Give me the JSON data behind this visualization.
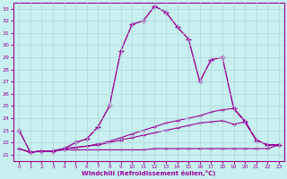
{
  "xlabel": "Windchill (Refroidissement éolien,°C)",
  "bg_color": "#c8f0f0",
  "grid_color": "#b0d8d8",
  "line_color": "#990099",
  "x_ticks": [
    0,
    1,
    2,
    3,
    4,
    5,
    6,
    7,
    8,
    9,
    10,
    11,
    12,
    13,
    14,
    15,
    16,
    17,
    18,
    19,
    20,
    21,
    22,
    23
  ],
  "ylim": [
    20.5,
    33.5
  ],
  "xlim": [
    -0.5,
    23.5
  ],
  "yticks": [
    21,
    22,
    23,
    24,
    25,
    26,
    27,
    28,
    29,
    30,
    31,
    32,
    33
  ],
  "line1_x": [
    0,
    1,
    2,
    3,
    4,
    5,
    6,
    7,
    8,
    9,
    10,
    11,
    12,
    13,
    14,
    15,
    16,
    17,
    18,
    19,
    20,
    21,
    22,
    23
  ],
  "line1_y": [
    23.0,
    21.2,
    21.3,
    21.3,
    21.5,
    22.0,
    22.3,
    23.3,
    25.0,
    29.5,
    31.7,
    32.0,
    33.2,
    32.7,
    31.5,
    30.5,
    27.0,
    28.8,
    29.0,
    24.8,
    23.7,
    22.2,
    21.8,
    21.8
  ],
  "line2_x": [
    0,
    1,
    2,
    3,
    4,
    5,
    6,
    7,
    8,
    9,
    10,
    11,
    12,
    13,
    14,
    15,
    16,
    17,
    18,
    19,
    20,
    21,
    22,
    23
  ],
  "line2_y": [
    21.5,
    21.2,
    21.3,
    21.3,
    21.5,
    21.6,
    21.7,
    21.9,
    22.1,
    22.4,
    22.7,
    23.0,
    23.3,
    23.6,
    23.8,
    24.0,
    24.2,
    24.5,
    24.7,
    24.8,
    23.8,
    22.2,
    21.8,
    21.8
  ],
  "line3_x": [
    0,
    1,
    2,
    3,
    4,
    5,
    6,
    7,
    8,
    9,
    10,
    11,
    12,
    13,
    14,
    15,
    16,
    17,
    18,
    19,
    20,
    21,
    22,
    23
  ],
  "line3_y": [
    21.5,
    21.2,
    21.3,
    21.3,
    21.5,
    21.6,
    21.7,
    21.8,
    22.0,
    22.2,
    22.4,
    22.6,
    22.8,
    23.0,
    23.2,
    23.4,
    23.6,
    23.7,
    23.8,
    23.5,
    23.7,
    22.2,
    21.8,
    21.8
  ],
  "line4_x": [
    0,
    1,
    2,
    3,
    4,
    5,
    6,
    7,
    8,
    9,
    10,
    11,
    12,
    13,
    14,
    15,
    16,
    17,
    18,
    19,
    20,
    21,
    22,
    23
  ],
  "line4_y": [
    21.5,
    21.2,
    21.3,
    21.3,
    21.4,
    21.4,
    21.4,
    21.4,
    21.4,
    21.4,
    21.4,
    21.4,
    21.5,
    21.5,
    21.5,
    21.5,
    21.5,
    21.5,
    21.5,
    21.5,
    21.5,
    21.5,
    21.5,
    21.8
  ]
}
